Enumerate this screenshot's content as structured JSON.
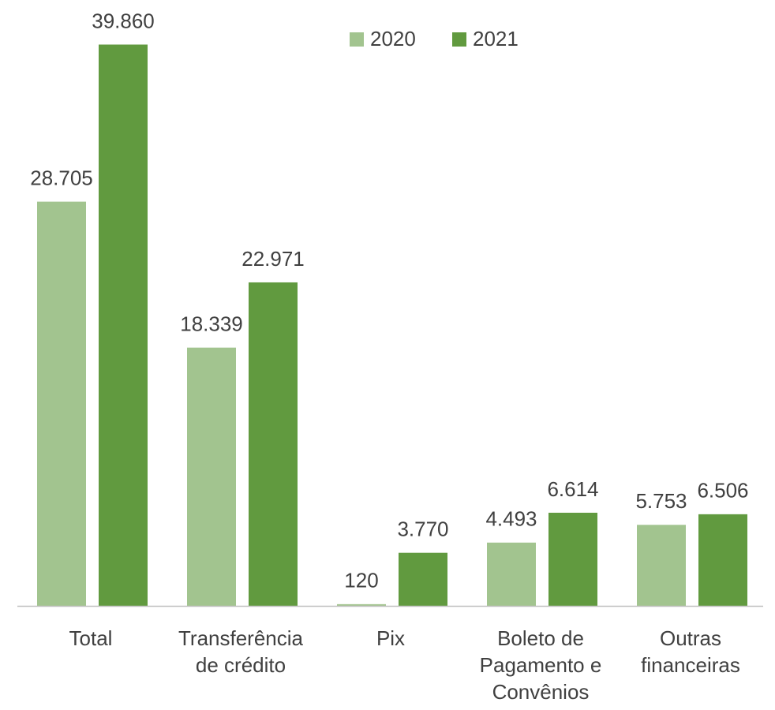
{
  "chart_data": {
    "type": "bar",
    "categories": [
      "Total",
      "Transferência de crédito",
      "Pix",
      "Boleto de Pagamento e Convênios",
      "Outras financeiras"
    ],
    "series": [
      {
        "name": "2020",
        "color": "#a2c48f",
        "values": [
          28705,
          18339,
          120,
          4493,
          5753
        ],
        "value_labels": [
          "28.705",
          "18.339",
          "120",
          "4.493",
          "5.753"
        ]
      },
      {
        "name": "2021",
        "color": "#619a3f",
        "values": [
          39860,
          22971,
          3770,
          6614,
          6506
        ],
        "value_labels": [
          "39.860",
          "22.971",
          "3.770",
          "6.614",
          "6.506"
        ]
      }
    ],
    "ylim": [
      0,
      40000
    ],
    "legend": "top"
  }
}
